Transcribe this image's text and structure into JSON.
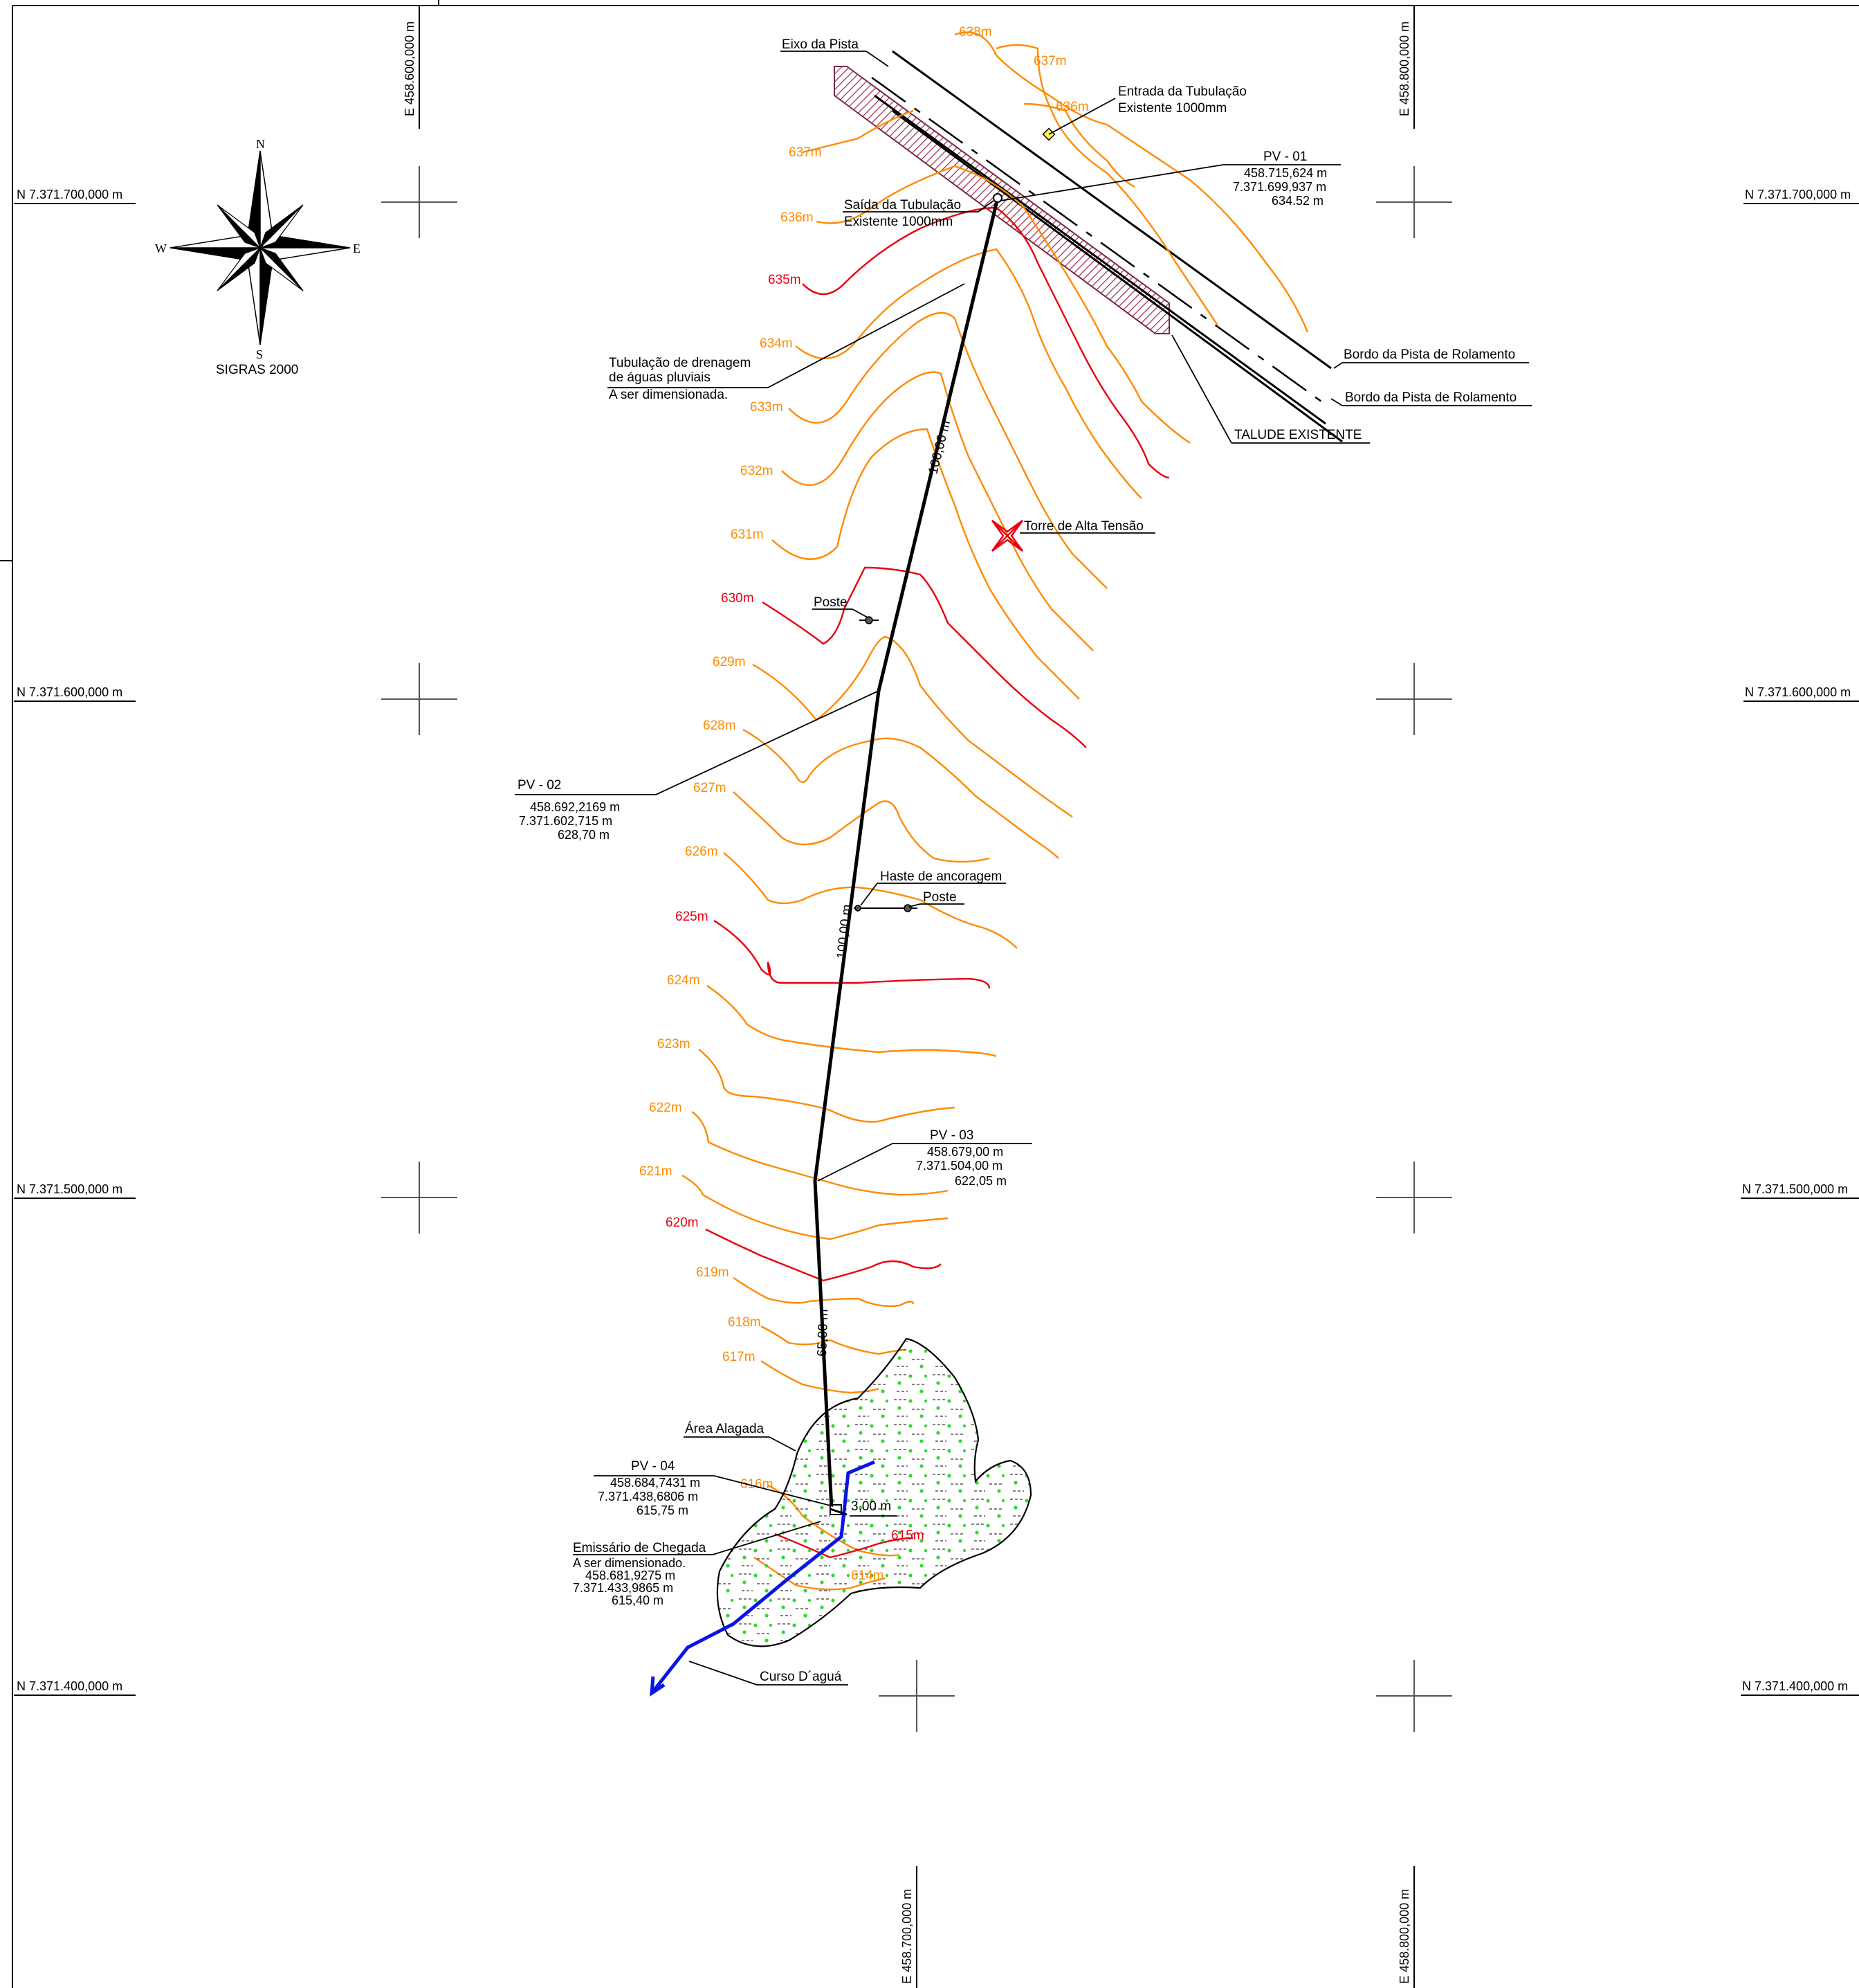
{
  "coordinate_grid": {
    "north_labels": [
      "N 7.371.700,000 m",
      "N 7.371.600,000 m",
      "N 7.371.500,000 m",
      "N 7.371.400,000 m"
    ],
    "east_labels_top": [
      "E 458.600,000 m",
      "E 458.800,000 m"
    ],
    "east_labels_bottom": [
      "E 458.700,000 m",
      "E 458.800,000 m"
    ]
  },
  "north_arrow": {
    "n": "N",
    "s": "S",
    "e": "E",
    "w": "W",
    "datum": "SIGRAS 2000"
  },
  "contours": {
    "labels": [
      "638m",
      "637m",
      "636m",
      "637m",
      "636m",
      "635m",
      "634m",
      "633m",
      "632m",
      "631m",
      "630m",
      "629m",
      "628m",
      "627m",
      "626m",
      "625m",
      "624m",
      "623m",
      "622m",
      "621m",
      "620m",
      "619m",
      "618m",
      "617m",
      "616m",
      "615m",
      "614m"
    ],
    "colors": {
      "major": "#e8000f",
      "minor": "#ff8a00"
    }
  },
  "pipeline": {
    "segment_lengths": [
      "100,00 m",
      "100,00 m",
      "65,00 m",
      "3,00 m"
    ]
  },
  "annotations": {
    "eixo": "Eixo da Pista",
    "entrada": [
      "Entrada da Tubulação",
      "Existente 1000mm"
    ],
    "saida": [
      "Saída da Tubulação",
      "Existente 1000mm"
    ],
    "bordo1": "Bordo da Pista de Rolamento",
    "bordo2": "Bordo da Pista de Rolamento",
    "talude": "TALUDE EXISTENTE",
    "tubulacao": [
      "Tubulação de drenagem",
      "de águas pluviais",
      "A ser dimensionada."
    ],
    "torre": "Torre de Alta Tensão",
    "poste1": "Poste",
    "haste": "Haste de ancoragem",
    "poste2": "Poste",
    "area": "Área Alagada",
    "curso": "Curso D´aguá"
  },
  "pvs": {
    "pv01": {
      "title": "PV - 01",
      "lines": [
        "458.715,624 m",
        "7.371.699,937 m",
        "634.52 m"
      ]
    },
    "pv02": {
      "title": "PV - 02",
      "lines": [
        "458.692,2169 m",
        "7.371.602,715 m",
        "628,70 m"
      ]
    },
    "pv03": {
      "title": "PV - 03",
      "lines": [
        "458.679,00 m",
        "7.371.504,00 m",
        "622,05 m"
      ]
    },
    "pv04": {
      "title": "PV - 04",
      "lines": [
        "458.684,7431 m",
        "7.371.438,6806 m",
        "615,75 m"
      ]
    },
    "emissario": {
      "title": "Emissário de Chegada",
      "lines": [
        "A ser dimensionado.",
        "458.681,9275 m",
        "7.371.433,9865 m",
        "615,40 m"
      ]
    }
  }
}
